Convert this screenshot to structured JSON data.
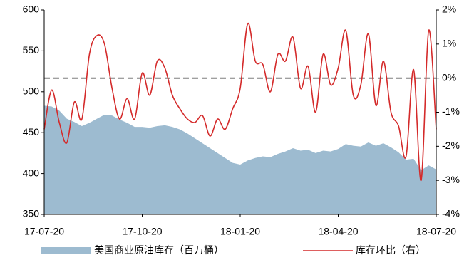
{
  "chart_data": {
    "type": "area-line",
    "categories": [
      "17-07-20",
      null,
      null,
      null,
      null,
      null,
      null,
      null,
      null,
      null,
      null,
      null,
      null,
      "17-10-20",
      null,
      null,
      null,
      null,
      null,
      null,
      null,
      null,
      null,
      null,
      null,
      null,
      "18-01-20",
      null,
      null,
      null,
      null,
      null,
      null,
      null,
      null,
      null,
      null,
      null,
      null,
      "18-04-20",
      null,
      null,
      null,
      null,
      null,
      null,
      null,
      null,
      null,
      null,
      null,
      null,
      "18-07-20"
    ],
    "series": [
      {
        "name": "美国商业原油库存（百万桶）",
        "kind": "area",
        "axis": "y",
        "color": "#9dbbd0",
        "values": [
          483,
          482,
          477,
          467,
          463,
          458,
          462,
          467,
          472,
          471,
          466,
          462,
          457,
          457,
          456,
          458,
          459,
          457,
          454,
          449,
          443,
          437,
          431,
          425,
          419,
          413,
          411,
          416,
          419,
          421,
          420,
          424,
          427,
          431,
          428,
          429,
          425,
          428,
          427,
          430,
          436,
          434,
          433,
          438,
          434,
          437,
          432,
          426,
          417,
          418,
          404,
          410,
          405
        ]
      },
      {
        "name": "库存环比（右）",
        "kind": "line",
        "axis": "y2",
        "color": "#d42a2a",
        "values": [
          -1.5,
          -0.35,
          -1.3,
          -1.9,
          -0.7,
          -1.2,
          0.7,
          1.25,
          1.0,
          -0.3,
          -1.2,
          -0.6,
          -1.2,
          0.15,
          -0.5,
          0.5,
          0.3,
          -0.5,
          -0.9,
          -1.2,
          -1.3,
          -1.1,
          -1.7,
          -1.2,
          -1.5,
          -0.9,
          -0.3,
          1.6,
          0.5,
          0.4,
          -0.4,
          0.7,
          0.5,
          1.2,
          -0.3,
          0.35,
          -1.0,
          0.7,
          -0.2,
          0.3,
          1.4,
          -0.5,
          -0.2,
          1.3,
          -0.8,
          0.5,
          -1.0,
          -1.4,
          -2.3,
          0.25,
          -3.0,
          1.4,
          -1.5
        ]
      }
    ],
    "ylim": [
      350,
      600
    ],
    "yticks": [
      350,
      400,
      450,
      500,
      550,
      600
    ],
    "y2lim": [
      -4,
      2
    ],
    "y2ticks": [
      {
        "value": -4,
        "label": "-4%"
      },
      {
        "value": -3,
        "label": "-3%"
      },
      {
        "value": -2,
        "label": "-2%"
      },
      {
        "value": -1,
        "label": "-1%"
      },
      {
        "value": 0,
        "label": "0%"
      },
      {
        "value": 1,
        "label": "1%"
      },
      {
        "value": 2,
        "label": "2%"
      }
    ],
    "hline": {
      "axis": "y2",
      "value": 0,
      "style": "dashed"
    },
    "grid": false,
    "legend": "bottom"
  }
}
